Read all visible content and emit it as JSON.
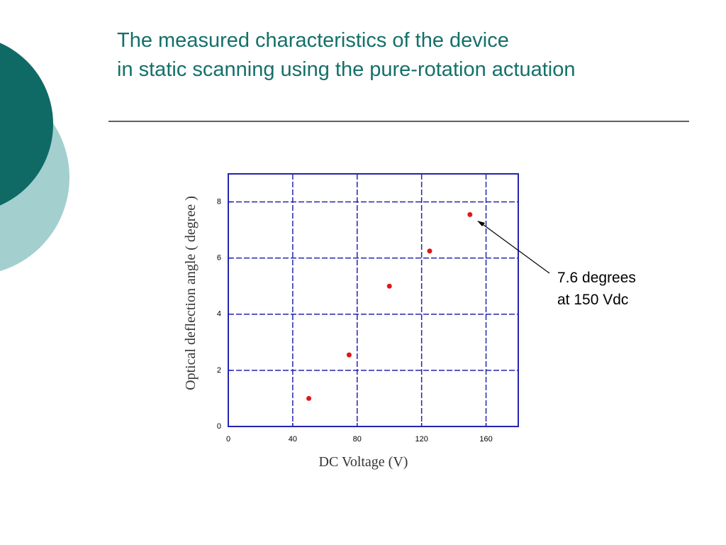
{
  "title": [
    "The measured characteristics of the device",
    "in static scanning using the pure-rotation actuation"
  ],
  "chart_data": {
    "type": "scatter",
    "x_label": "DC Voltage (V)",
    "y_label": "Optical deflection angle ( degree )",
    "series": [
      {
        "color": "#e01818",
        "x": [
          50,
          75,
          100,
          125,
          150
        ],
        "values": [
          1.0,
          2.55,
          5.0,
          6.25,
          7.55
        ]
      }
    ],
    "xlim": [
      0,
      180
    ],
    "xticks": [
      0,
      40,
      80,
      120,
      160
    ],
    "ylim": [
      0,
      9
    ],
    "yticks": [
      0,
      2,
      4,
      6,
      8
    ],
    "grid": true,
    "annotation": [
      "7.6 degrees",
      "at 150 Vdc"
    ]
  }
}
